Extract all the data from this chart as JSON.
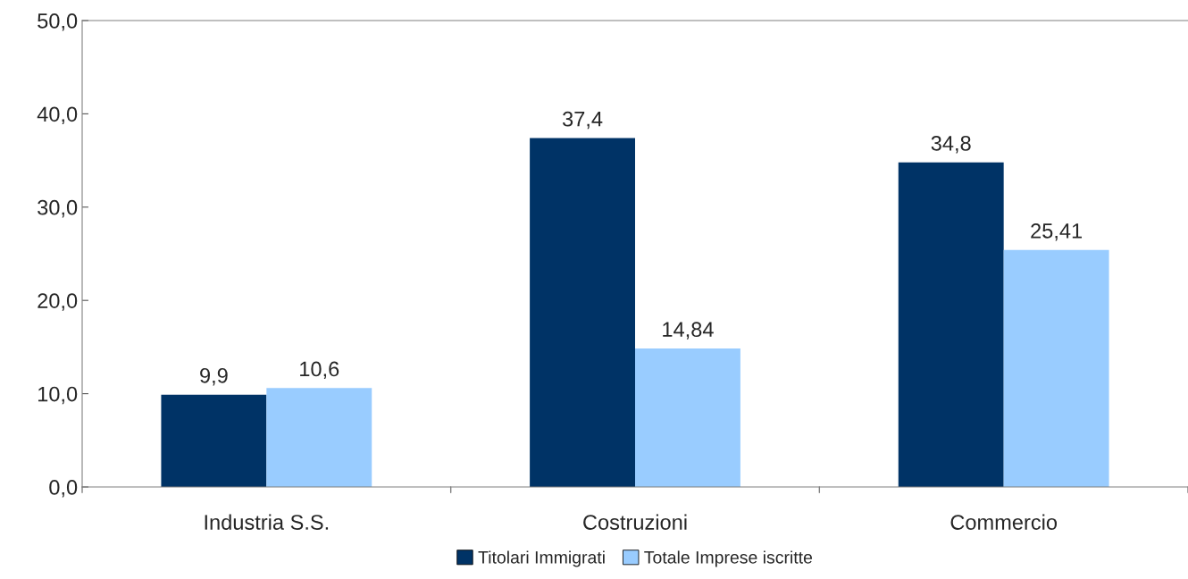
{
  "chart_data": {
    "type": "bar",
    "categories": [
      "Industria S.S.",
      "Costruzioni",
      "Commercio"
    ],
    "series": [
      {
        "name": "Titolari Immigrati",
        "color": "#003366",
        "values": [
          9.9,
          37.4,
          34.8
        ],
        "value_labels": [
          "9,9",
          "37,4",
          "34,8"
        ]
      },
      {
        "name": "Totale Imprese iscritte",
        "color": "#99ccff",
        "values": [
          10.6,
          14.84,
          25.41
        ],
        "value_labels": [
          "10,6",
          "14,84",
          "25,41"
        ]
      }
    ],
    "ylim": [
      0,
      50
    ],
    "yticks": [
      {
        "value": 0,
        "label": "0,0"
      },
      {
        "value": 10,
        "label": "10,0"
      },
      {
        "value": 20,
        "label": "20,0"
      },
      {
        "value": 30,
        "label": "30,0"
      },
      {
        "value": 40,
        "label": "40,0"
      },
      {
        "value": 50,
        "label": "50,0"
      }
    ],
    "grid": false,
    "legend": "bottom"
  }
}
